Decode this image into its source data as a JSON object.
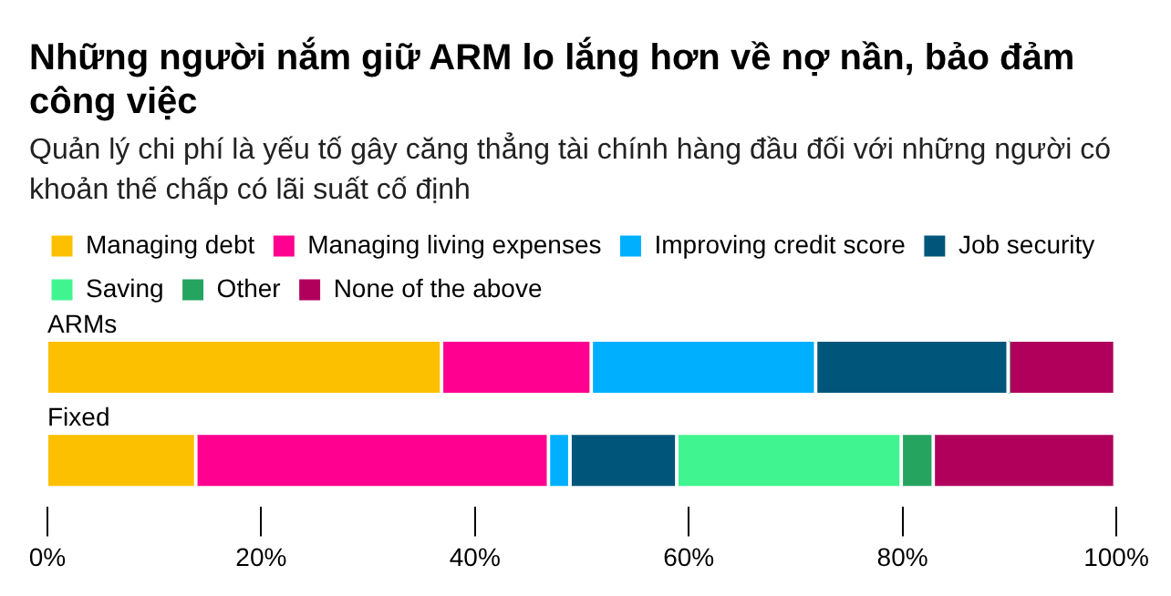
{
  "chart_data": {
    "type": "bar",
    "orientation": "horizontal",
    "stacked": true,
    "title": "Những người nắm giữ ARM lo lắng hơn về nợ nần, bảo đảm công việc",
    "subtitle": "Quản lý chi phí là yếu tố gây căng thẳng tài chính hàng đầu đối với những người có khoản thế chấp có lãi suất cố định",
    "categories": [
      "ARMs",
      "Fixed"
    ],
    "series": [
      {
        "name": "Managing debt",
        "color": "#fcc000",
        "values": [
          37,
          14
        ]
      },
      {
        "name": "Managing living expenses",
        "color": "#ff0090",
        "values": [
          14,
          33
        ]
      },
      {
        "name": "Improving credit score",
        "color": "#00b0ff",
        "values": [
          21,
          2
        ]
      },
      {
        "name": "Job security",
        "color": "#00567a",
        "values": [
          18,
          10
        ]
      },
      {
        "name": "Saving",
        "color": "#40f590",
        "values": [
          0,
          21
        ]
      },
      {
        "name": "Other",
        "color": "#25a460",
        "values": [
          0,
          3
        ]
      },
      {
        "name": "None of the above",
        "color": "#b0005c",
        "values": [
          10,
          17
        ]
      }
    ],
    "xlim": [
      0,
      100
    ],
    "xticks": [
      {
        "value": 0,
        "label": "0%"
      },
      {
        "value": 20,
        "label": "20%"
      },
      {
        "value": 40,
        "label": "40%"
      },
      {
        "value": 60,
        "label": "60%"
      },
      {
        "value": 80,
        "label": "80%"
      },
      {
        "value": 100,
        "label": "100%"
      }
    ],
    "grid": false,
    "legend": "top left"
  }
}
